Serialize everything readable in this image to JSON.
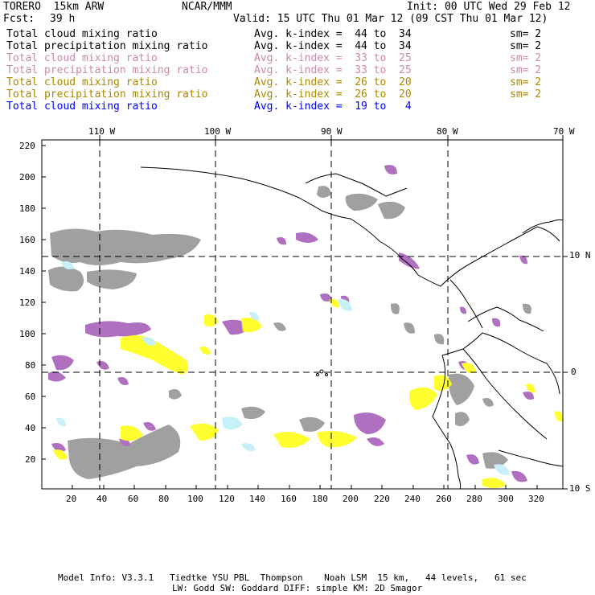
{
  "header": {
    "model": "TORERO  15km ARW",
    "org": "NCAR/MMM",
    "init": "Init: 00 UTC Wed 29 Feb 12",
    "fcst_label": "Fcst:",
    "fcst_value": "39 h",
    "valid": "Valid: 15 UTC Thu 01 Mar 12 (09 CST Thu 01 Mar 12)"
  },
  "fields": [
    {
      "name": "Total cloud mixing ratio",
      "kindex": "Avg. k-index =  44 to  34",
      "sm": "sm= 2",
      "color": "#000000"
    },
    {
      "name": "Total precipitation mixing ratio",
      "kindex": "Avg. k-index =  44 to  34",
      "sm": "sm= 2",
      "color": "#000000"
    },
    {
      "name": "Total cloud mixing ratio",
      "kindex": "Avg. k-index =  33 to  25",
      "sm": "sm= 2",
      "color": "#cc88cc"
    },
    {
      "name": "Total precipitation mixing ratio",
      "kindex": "Avg. k-index =  33 to  25",
      "sm": "sm= 2",
      "color": "#cc88cc"
    },
    {
      "name": "Total cloud mixing ratio",
      "kindex": "Avg. k-index =  26 to  20",
      "sm": "sm= 2",
      "color": "#aa8800"
    },
    {
      "name": "Total precipitation mixing ratio",
      "kindex": "Avg. k-index =  26 to  20",
      "sm": "sm= 2",
      "color": "#aa8800"
    },
    {
      "name": "Total cloud mixing ratio",
      "kindex": "Avg. k-index =  19 to   4",
      "sm": "",
      "color": "#0000ff"
    }
  ],
  "map": {
    "top_lon_labels": [
      "110 W",
      "100 W",
      "90 W",
      "80 W",
      "70 W"
    ],
    "right_lat_labels": [
      "10 N",
      "0",
      "10 S"
    ],
    "y_ticks": [
      "220",
      "200",
      "180",
      "160",
      "140",
      "120",
      "100",
      "80",
      "60",
      "40",
      "20"
    ],
    "x_ticks": [
      "20",
      "40",
      "60",
      "80",
      "100",
      "120",
      "140",
      "160",
      "180",
      "200",
      "220",
      "240",
      "260",
      "280",
      "300",
      "320"
    ],
    "colors": {
      "gray_cloud": "#a0a0a0",
      "magenta": "#b070c0",
      "yellow": "#ffff30",
      "cyan": "#c8f0f8",
      "coast": "#000000"
    }
  },
  "footer": {
    "line1": "Model Info: V3.3.1   Tiedtke YSU PBL  Thompson    Noah LSM  15 km,   44 levels,   61 sec",
    "line2": "LW: Godd SW: Goddard DIFF: simple KM: 2D Smagor"
  }
}
